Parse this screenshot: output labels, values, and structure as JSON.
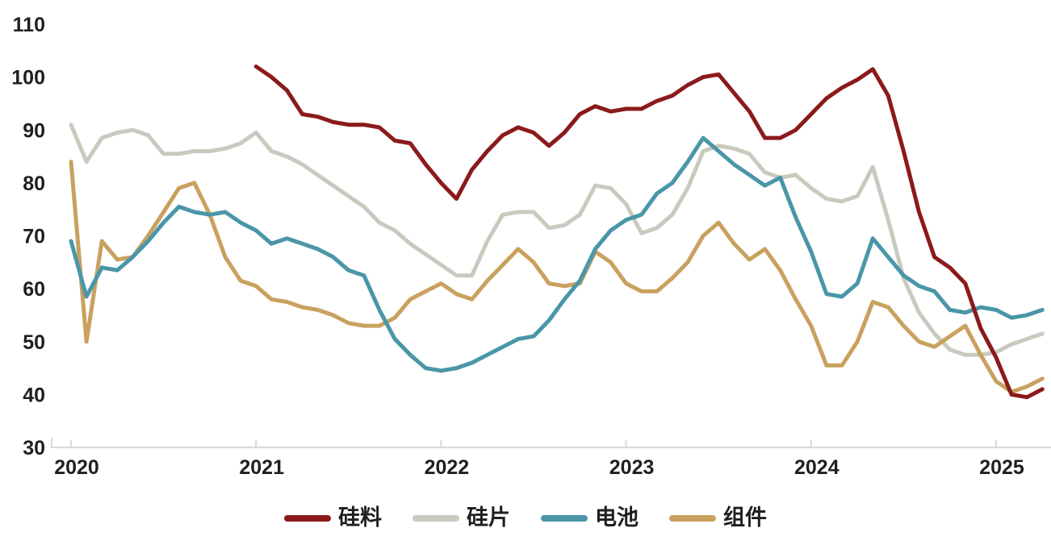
{
  "chart_data": {
    "type": "line",
    "title": "",
    "xlabel": "",
    "ylabel": "",
    "ylim": [
      30,
      110
    ],
    "y_ticks": [
      30,
      40,
      50,
      60,
      70,
      80,
      90,
      100,
      110
    ],
    "x_tick_labels": [
      "2020",
      "2021",
      "2022",
      "2023",
      "2024",
      "2025"
    ],
    "x_tick_month_index": [
      0,
      12,
      24,
      36,
      48,
      60
    ],
    "grid": false,
    "legend_position": "bottom-center",
    "axis_color": "#d9d9d9",
    "label_color": "#1f1f1f",
    "x": [
      "2020-01",
      "2020-02",
      "2020-03",
      "2020-04",
      "2020-05",
      "2020-06",
      "2020-07",
      "2020-08",
      "2020-09",
      "2020-10",
      "2020-11",
      "2020-12",
      "2021-01",
      "2021-02",
      "2021-03",
      "2021-04",
      "2021-05",
      "2021-06",
      "2021-07",
      "2021-08",
      "2021-09",
      "2021-10",
      "2021-11",
      "2021-12",
      "2022-01",
      "2022-02",
      "2022-03",
      "2022-04",
      "2022-05",
      "2022-06",
      "2022-07",
      "2022-08",
      "2022-09",
      "2022-10",
      "2022-11",
      "2022-12",
      "2023-01",
      "2023-02",
      "2023-03",
      "2023-04",
      "2023-05",
      "2023-06",
      "2023-07",
      "2023-08",
      "2023-09",
      "2023-10",
      "2023-11",
      "2023-12",
      "2024-01",
      "2024-02",
      "2024-03",
      "2024-04",
      "2024-05",
      "2024-06",
      "2024-07",
      "2024-08",
      "2024-09",
      "2024-10",
      "2024-11",
      "2024-12",
      "2025-01",
      "2025-02",
      "2025-03",
      "2025-04"
    ],
    "series": [
      {
        "name": "硅料",
        "color": "#8b1a1b",
        "values": [
          null,
          null,
          null,
          null,
          null,
          null,
          null,
          null,
          null,
          null,
          null,
          null,
          102,
          100,
          97.5,
          93,
          92.5,
          91.5,
          91,
          91,
          90.5,
          88,
          87.5,
          83.5,
          80,
          77,
          82.5,
          86,
          89,
          90.5,
          89.5,
          87,
          89.5,
          93,
          94.5,
          93.5,
          94,
          94,
          95.5,
          96.5,
          98.5,
          100,
          100.5,
          97,
          93.5,
          88.5,
          88.5,
          90,
          93,
          96,
          98,
          99.5,
          101.5,
          96.5,
          86,
          74.5,
          66,
          64,
          61,
          52.5,
          47,
          40,
          39.5,
          41
        ]
      },
      {
        "name": "硅片",
        "color": "#c9cabf",
        "values": [
          91,
          84,
          88.5,
          89.5,
          90,
          89,
          85.5,
          85.5,
          86,
          86,
          86.5,
          87.5,
          89.5,
          86,
          85,
          83.5,
          81.5,
          79.5,
          77.5,
          75.5,
          72.5,
          71,
          68.5,
          66.5,
          64.5,
          62.5,
          62.5,
          69,
          74,
          74.5,
          74.5,
          71.5,
          72,
          74,
          79.5,
          79,
          76,
          70.5,
          71.5,
          74,
          79,
          86,
          87,
          86.5,
          85.5,
          82,
          81,
          81.5,
          79,
          77,
          76.5,
          77.5,
          83,
          73,
          62,
          55.5,
          51.5,
          48.5,
          47.5,
          47.5,
          48,
          49.5,
          50.5,
          51.5
        ]
      },
      {
        "name": "电池",
        "color": "#4a96a9",
        "values": [
          69,
          58.5,
          64,
          63.5,
          66,
          69,
          72.5,
          75.5,
          74.5,
          74,
          74.5,
          72.5,
          71,
          68.5,
          69.5,
          68.5,
          67.5,
          66,
          63.5,
          62.5,
          56,
          50.5,
          47.5,
          45,
          44.5,
          45,
          46,
          47.5,
          49,
          50.5,
          51,
          54,
          58,
          61.5,
          67.5,
          71,
          73,
          74,
          78,
          80,
          84,
          88.5,
          86,
          83.5,
          81.5,
          79.5,
          81,
          73.5,
          67,
          59,
          58.5,
          61,
          69.5,
          66,
          62.5,
          60.5,
          59.5,
          56,
          55.5,
          56.5,
          56,
          54.5,
          55,
          56
        ]
      },
      {
        "name": "组件",
        "color": "#c9a15f",
        "values": [
          84,
          50,
          69,
          65.5,
          66,
          70,
          74.5,
          79,
          80,
          74,
          66,
          61.5,
          60.5,
          58,
          57.5,
          56.5,
          56,
          55,
          53.5,
          53,
          53,
          54.5,
          58,
          59.5,
          61,
          59,
          58,
          61.5,
          64.5,
          67.5,
          65,
          61,
          60.5,
          61,
          67,
          65,
          61,
          59.5,
          59.5,
          62,
          65,
          70,
          72.5,
          68.5,
          65.5,
          67.5,
          63.5,
          58,
          53,
          45.5,
          45.5,
          50,
          57.5,
          56.5,
          53,
          50,
          49,
          51,
          53,
          47.5,
          42.5,
          40.5,
          41.5,
          43
        ]
      }
    ]
  },
  "legend": {
    "items": [
      {
        "label": "硅料"
      },
      {
        "label": "硅片"
      },
      {
        "label": "电池"
      },
      {
        "label": "组件"
      }
    ]
  }
}
